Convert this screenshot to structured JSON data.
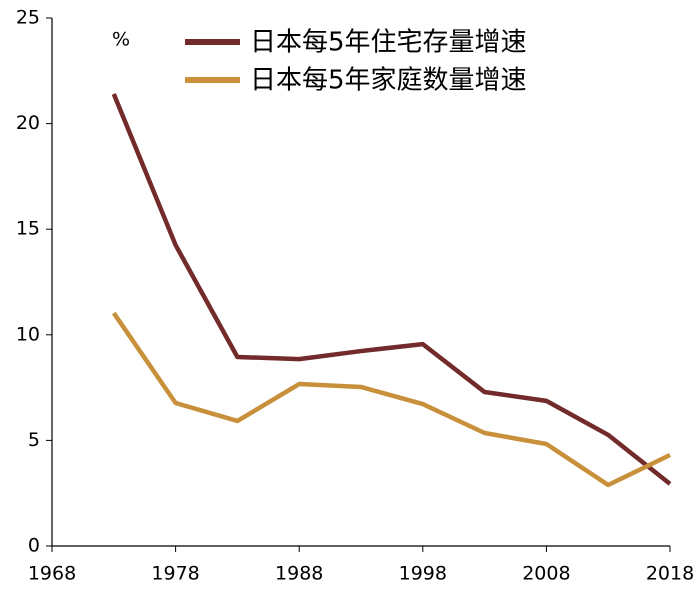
{
  "chart_data": {
    "type": "line",
    "ylabel": "%",
    "x": [
      1973,
      1978,
      1983,
      1988,
      1993,
      1998,
      2003,
      2008,
      2013,
      2018
    ],
    "series": [
      {
        "name": "日本每5年住宅存量增速",
        "color": "#722a2a",
        "values": [
          21.4,
          14.25,
          8.95,
          8.85,
          9.23,
          9.56,
          7.29,
          6.87,
          5.26,
          2.94
        ]
      },
      {
        "name": "日本每5年家庭数量增速",
        "color": "#c8903a",
        "values": [
          11.03,
          6.77,
          5.92,
          7.67,
          7.53,
          6.72,
          5.35,
          4.83,
          2.89,
          4.31
        ]
      }
    ],
    "xlim": [
      1968,
      2018
    ],
    "xticks": [
      1968,
      1978,
      1988,
      1998,
      2008,
      2018
    ],
    "ylim": [
      0,
      25
    ],
    "yticks": [
      0,
      5,
      10,
      15,
      20,
      25
    ],
    "grid": false,
    "legend": "upper right"
  }
}
